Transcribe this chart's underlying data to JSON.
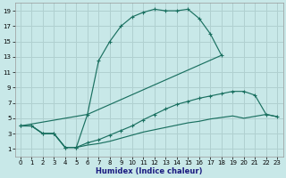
{
  "xlabel": "Humidex (Indice chaleur)",
  "bg_color": "#c8e8e8",
  "grid_color": "#b0d0d0",
  "line_color": "#1a7060",
  "xlim": [
    -0.5,
    23.5
  ],
  "ylim": [
    0,
    20
  ],
  "xticks": [
    0,
    1,
    2,
    3,
    4,
    5,
    6,
    7,
    8,
    9,
    10,
    11,
    12,
    13,
    14,
    15,
    16,
    17,
    18,
    19,
    20,
    21,
    22,
    23
  ],
  "yticks": [
    1,
    3,
    5,
    7,
    9,
    11,
    13,
    15,
    17,
    19
  ],
  "curve1_x": [
    0,
    1,
    2,
    3,
    4,
    5,
    6,
    7,
    8,
    9,
    10,
    11,
    12,
    13,
    14,
    15,
    16,
    17,
    18
  ],
  "curve1_y": [
    4.0,
    4.0,
    3.0,
    3.0,
    1.2,
    1.2,
    5.5,
    12.5,
    15.0,
    17.0,
    18.2,
    18.8,
    19.2,
    19.0,
    19.0,
    19.2,
    18.0,
    16.0,
    13.2
  ],
  "curve2_x": [
    0,
    6,
    18
  ],
  "curve2_y": [
    4.0,
    5.5,
    13.2
  ],
  "curve3_x": [
    0,
    1,
    2,
    3,
    4,
    5,
    6,
    7,
    8,
    9,
    10,
    11,
    12,
    13,
    14,
    15,
    16,
    17,
    18,
    19,
    20,
    21,
    22,
    23
  ],
  "curve3_y": [
    4.0,
    4.0,
    3.0,
    3.0,
    1.2,
    1.2,
    1.8,
    2.2,
    2.8,
    3.4,
    4.0,
    4.8,
    5.5,
    6.2,
    6.8,
    7.2,
    7.6,
    7.9,
    8.2,
    8.5,
    8.5,
    8.0,
    5.5,
    5.2
  ],
  "curve4_x": [
    0,
    1,
    2,
    3,
    4,
    5,
    6,
    7,
    8,
    9,
    10,
    11,
    12,
    13,
    14,
    15,
    16,
    17,
    18,
    19,
    20,
    22,
    23
  ],
  "curve4_y": [
    4.0,
    4.0,
    3.0,
    3.0,
    1.2,
    1.2,
    1.5,
    1.7,
    2.0,
    2.4,
    2.8,
    3.2,
    3.5,
    3.8,
    4.1,
    4.4,
    4.6,
    4.9,
    5.1,
    5.3,
    5.0,
    5.5,
    5.2
  ]
}
